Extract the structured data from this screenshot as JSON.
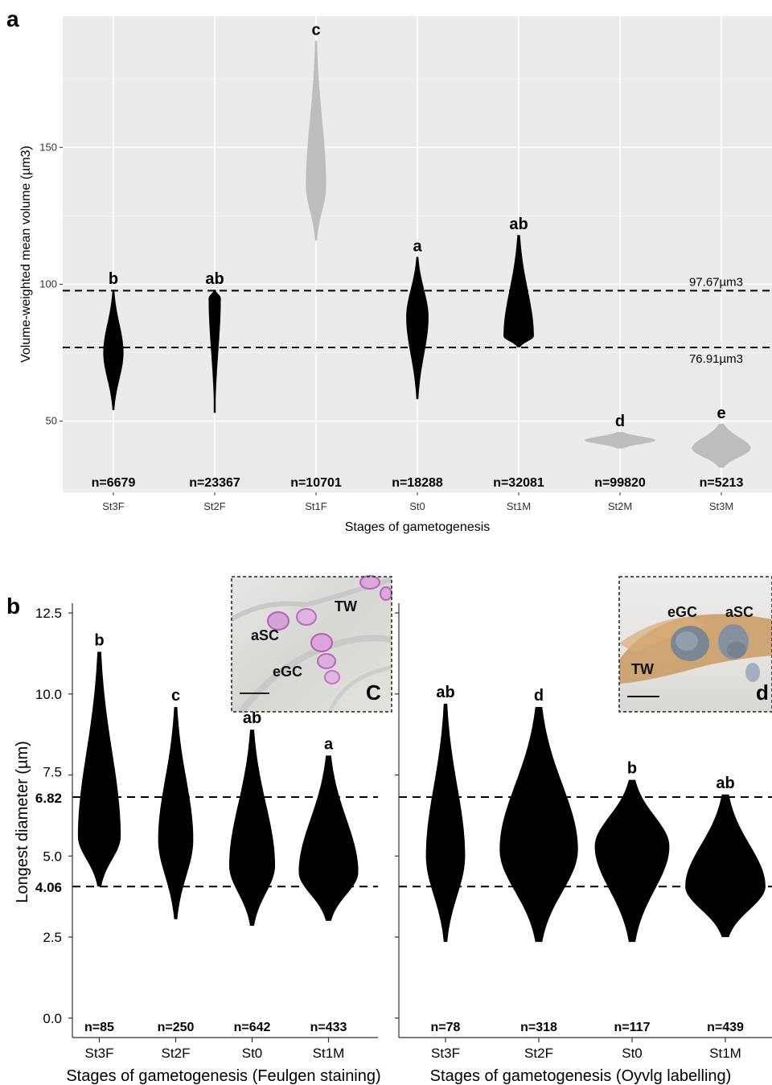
{
  "chart_data": [
    {
      "panel": "a",
      "type": "violin",
      "xlabel": "Stages of gametogenesis",
      "ylabel": "Volume-weighted mean volume (µm3)",
      "ylim": [
        24,
        198
      ],
      "yticks": [
        50,
        100,
        150
      ],
      "grid": true,
      "categories": [
        "St3F",
        "St2F",
        "St1F",
        "St0",
        "St1M",
        "St2M",
        "St3M"
      ],
      "violins": [
        {
          "min": 54,
          "max": 98,
          "mode": 75,
          "width": 0.2,
          "color": "#000000",
          "letter": "b",
          "n": "n=6679"
        },
        {
          "min": 53,
          "max": 98,
          "mode": 95,
          "width": 0.12,
          "color": "#000000",
          "letter": "ab",
          "n": "n=23367"
        },
        {
          "min": 116,
          "max": 189,
          "mode": 136,
          "width": 0.2,
          "color": "#bdbdbd",
          "letter": "c",
          "n": "n=10701"
        },
        {
          "min": 58,
          "max": 110,
          "mode": 88,
          "width": 0.22,
          "color": "#000000",
          "letter": "a",
          "n": "n=18288"
        },
        {
          "min": 77,
          "max": 118,
          "mode": 81,
          "width": 0.3,
          "color": "#000000",
          "letter": "ab",
          "n": "n=32081"
        },
        {
          "min": 40,
          "max": 46,
          "mode": 43,
          "width": 0.7,
          "color": "#bdbdbd",
          "letter": "d",
          "n": "n=99820"
        },
        {
          "min": 33,
          "max": 49,
          "mode": 40,
          "width": 0.58,
          "color": "#bdbdbd",
          "letter": "e",
          "n": "n=5213"
        }
      ],
      "reference_lines": [
        {
          "value": 97.67,
          "label": "97.67µm3"
        },
        {
          "value": 76.91,
          "label": "76.91µm3"
        }
      ]
    },
    {
      "panel": "b",
      "type": "violin",
      "ylabel": "Longest diameter (µm)",
      "ylim": [
        -0.6,
        12.8
      ],
      "yticks": [
        "0.0",
        "2.5",
        "5.0",
        "7.5",
        "10.0",
        "12.5"
      ],
      "bold_ticks": [
        "4.06",
        "6.82"
      ],
      "grid": false,
      "reference_lines": [
        6.82,
        4.06
      ],
      "facets": [
        {
          "xlabel": "Stages of gametogenesis (Feulgen staining)",
          "categories": [
            "St3F",
            "St2F",
            "St0",
            "St1M"
          ],
          "violins": [
            {
              "min": 4.06,
              "max": 11.3,
              "mode": 5.6,
              "width": 0.56,
              "letter": "b",
              "n": "n=85"
            },
            {
              "min": 3.05,
              "max": 9.6,
              "mode": 5.5,
              "width": 0.46,
              "letter": "c",
              "n": "n=250"
            },
            {
              "min": 2.85,
              "max": 8.9,
              "mode": 4.7,
              "width": 0.6,
              "letter": "ab",
              "n": "n=642"
            },
            {
              "min": 3.0,
              "max": 8.1,
              "mode": 4.5,
              "width": 0.78,
              "letter": "a",
              "n": "n=433"
            }
          ],
          "inset": {
            "letter": "C",
            "labels": [
              "TW",
              "aSC",
              "eGC"
            ]
          }
        },
        {
          "xlabel": "Stages of gametogenesis (Oyvlg labelling)",
          "categories": [
            "St3F",
            "St2F",
            "St0",
            "St1M"
          ],
          "violins": [
            {
              "min": 2.35,
              "max": 9.7,
              "mode": 5.0,
              "width": 0.42,
              "letter": "ab",
              "n": "n=78"
            },
            {
              "min": 2.35,
              "max": 9.6,
              "mode": 5.2,
              "width": 0.84,
              "letter": "d",
              "n": "n=318"
            },
            {
              "min": 2.35,
              "max": 7.35,
              "mode": 5.3,
              "width": 0.8,
              "letter": "b",
              "n": "n=117"
            },
            {
              "min": 2.5,
              "max": 6.9,
              "mode": 4.06,
              "width": 0.86,
              "letter": "ab",
              "n": "n=439"
            }
          ],
          "inset": {
            "letter": "d",
            "labels": [
              "eGC",
              "aSC",
              "TW"
            ]
          }
        }
      ]
    }
  ]
}
